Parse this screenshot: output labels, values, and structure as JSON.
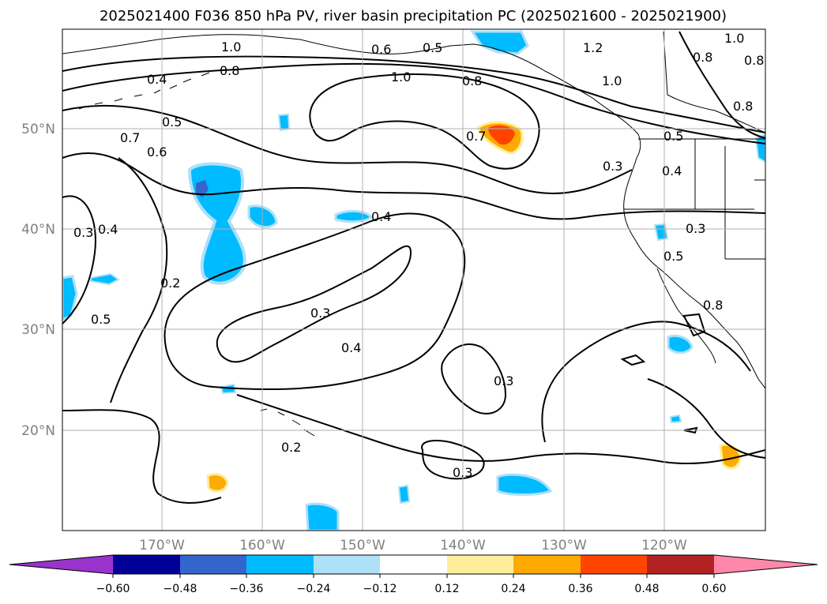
{
  "title": "2025021400 F036 850 hPa PV, river basin precipitation PC (2025021600 - 2025021900)",
  "lon_labels": [
    "170°W",
    "160°W",
    "150°W",
    "140°W",
    "130°W",
    "120°W"
  ],
  "lat_labels": [
    "50°N",
    "40°N",
    "30°N",
    "20°N"
  ],
  "contour_labels": [
    "1.0",
    "0.8",
    "0.6",
    "0.5",
    "1.0",
    "0.8",
    "1.2",
    "1.0",
    "1.0",
    "0.8",
    "0.8",
    "0.8",
    "0.4",
    "0.5",
    "0.7",
    "0.6",
    "0.7",
    "0.5",
    "0.3",
    "0.4",
    "0.4",
    "0.3",
    "0.4",
    "0.2",
    "0.5",
    "0.3",
    "0.4",
    "0.3",
    "0.5",
    "0.3",
    "0.8",
    "0.2",
    "0.3"
  ],
  "colorbar": {
    "colors": [
      "#9933cc",
      "#000099",
      "#3366cc",
      "#00bbff",
      "#aee0f8",
      "#ffffff",
      "#ffee99",
      "#ffaa00",
      "#ff4400",
      "#b22222",
      "#ff88aa"
    ],
    "tick_labels": [
      "−0.60",
      "−0.48",
      "−0.36",
      "−0.24",
      "−0.12",
      "0.12",
      "0.24",
      "0.36",
      "0.48",
      "0.60"
    ]
  },
  "map_extent": {
    "lon": [
      -180,
      -110
    ],
    "lat": [
      10,
      60
    ]
  },
  "fill_colors": {
    "neg_light": "#aee0f8",
    "neg": "#00bbff",
    "neg_strong": "#3366cc",
    "neg_extreme": "#9933cc",
    "pos_light": "#ffee99",
    "pos": "#ffaa00",
    "pos_strong": "#ff4400"
  }
}
